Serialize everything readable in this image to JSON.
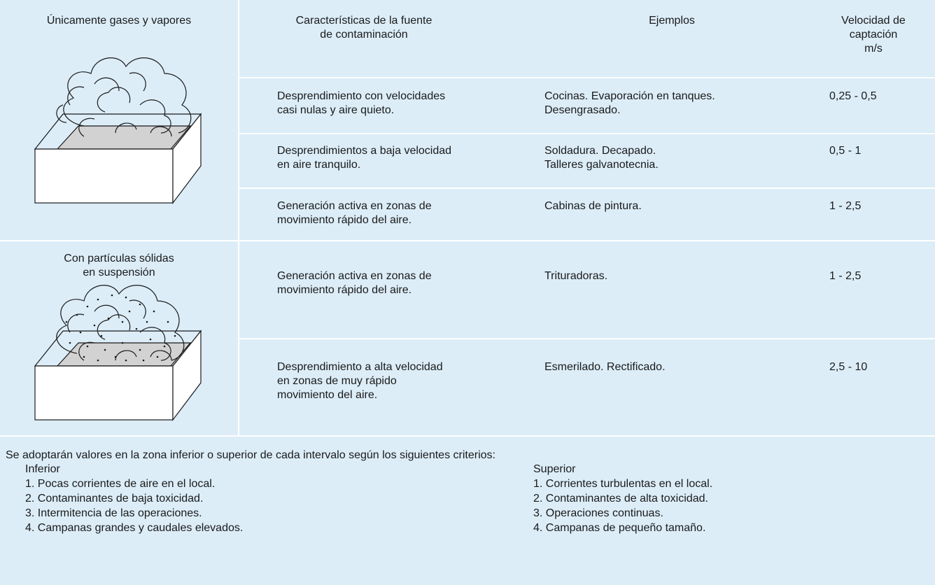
{
  "header": {
    "columns": [
      "Características de la fuente\nde contaminación",
      "Ejemplos",
      "Velocidad de\ncaptación\nm/s"
    ]
  },
  "groups": [
    {
      "label": "Únicamente gases y vapores",
      "rows": [
        [
          "Desprendimiento con velocidades\ncasi nulas y aire quieto.",
          "Cocinas. Evaporación en tanques.\nDesengrasado.",
          "0,25 - 0,5"
        ],
        [
          "Desprendimientos a baja velocidad\nen aire tranquilo.",
          "Soldadura. Decapado.\nTalleres galvanotecnia.",
          "0,5 - 1"
        ],
        [
          "Generación activa en zonas de\nmovimiento rápido del aire.",
          "Cabinas de pintura.",
          "1 - 2,5"
        ]
      ]
    },
    {
      "label": "Con partículas sólidas\nen suspensión",
      "rows": [
        [
          "Generación activa en zonas de\nmovimiento rápido del aire.",
          "Trituradoras.",
          "1 - 2,5"
        ],
        [
          "Desprendimiento a alta velocidad\nen zonas de muy rápido\nmovimiento del aire.",
          "Esmerilado. Rectificado.",
          "2,5 - 10"
        ]
      ]
    }
  ],
  "footer": {
    "intro": "Se adoptarán valores en la zona inferior o superior de cada intervalo según los siguientes criterios:",
    "inferior": {
      "title": "Inferior",
      "items": [
        "1. Pocas corrientes de aire en el local.",
        "2. Contaminantes de baja toxicidad.",
        "3. Intermitencia de las operaciones.",
        "4. Campanas grandes y caudales elevados."
      ]
    },
    "superior": {
      "title": "Superior",
      "items": [
        "1. Corrientes turbulentas en el local.",
        "2. Contaminantes de alta toxicidad.",
        "3. Operaciones continuas.",
        "4. Campanas de pequeño tamaño."
      ]
    }
  }
}
